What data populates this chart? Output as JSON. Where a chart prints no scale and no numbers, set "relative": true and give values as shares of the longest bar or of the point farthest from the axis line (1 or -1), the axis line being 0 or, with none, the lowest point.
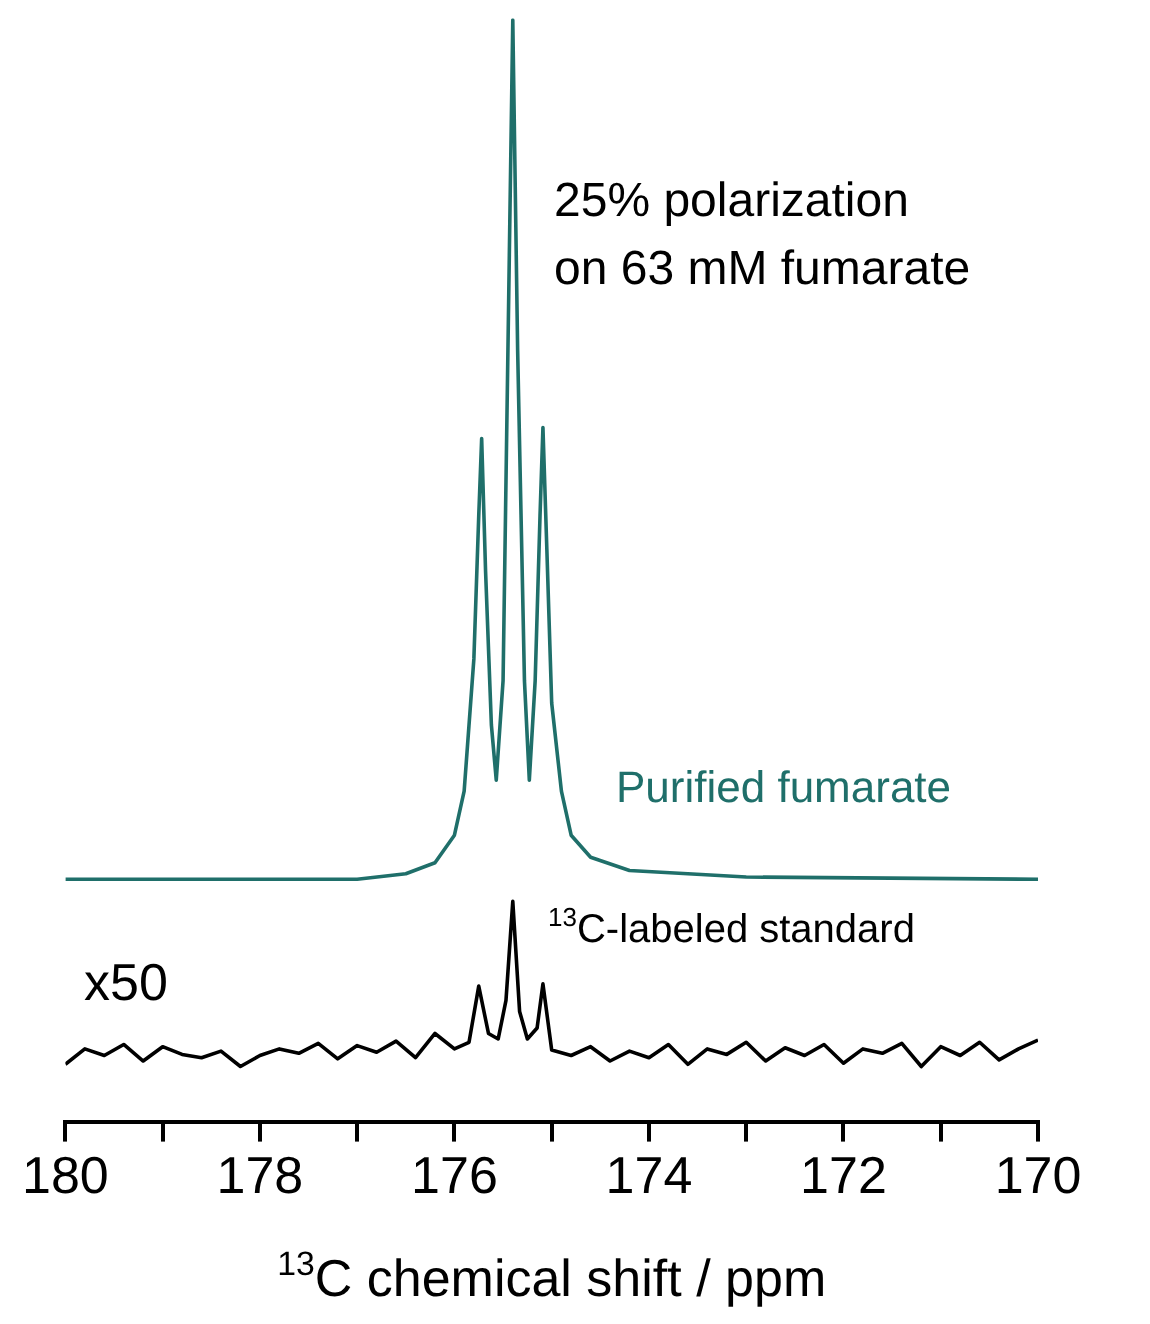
{
  "chart_data": {
    "type": "line",
    "relative": true,
    "xlabel": "$^{13}$C chemical shift / ppm",
    "annotations": [
      "25% polarization\non 63 mM fumarate",
      "x50"
    ],
    "xlim": [
      180,
      170
    ],
    "xticks": [
      180,
      {
        "value": 179,
        "label": null
      },
      178,
      {
        "value": 177,
        "label": null
      },
      176,
      {
        "value": 175,
        "label": null
      },
      174,
      {
        "value": 173,
        "label": null
      },
      172,
      {
        "value": 171,
        "label": null
      },
      170
    ],
    "grid": false,
    "legend": false,
    "marker": "none",
    "line_style": "solid",
    "tick_labels": "x",
    "series": [
      {
        "name": "Purified fumarate",
        "color": "#1f6f6a",
        "x": [
          180,
          177,
          176.5,
          176.2,
          176.0,
          175.9,
          175.8,
          175.75,
          175.72,
          175.68,
          175.62,
          175.57,
          175.5,
          175.45,
          175.4,
          175.35,
          175.28,
          175.23,
          175.17,
          175.12,
          175.09,
          175.05,
          175.0,
          174.9,
          174.8,
          174.6,
          174.2,
          173,
          170
        ],
        "values": [
          0.22,
          0.22,
          0.225,
          0.235,
          0.26,
          0.3,
          0.42,
          0.55,
          0.62,
          0.5,
          0.36,
          0.31,
          0.4,
          0.7,
          1.0,
          0.7,
          0.4,
          0.31,
          0.4,
          0.55,
          0.63,
          0.52,
          0.38,
          0.3,
          0.26,
          0.24,
          0.228,
          0.222,
          0.22
        ]
      },
      {
        "name": "$^{13}$C-labeled standard",
        "color": "#000000",
        "x": [
          180.0,
          179.8,
          179.6,
          179.4,
          179.2,
          179.0,
          178.8,
          178.6,
          178.4,
          178.2,
          178.0,
          177.8,
          177.6,
          177.4,
          177.2,
          177.0,
          176.8,
          176.6,
          176.4,
          176.2,
          176.0,
          175.85,
          175.75,
          175.65,
          175.55,
          175.47,
          175.4,
          175.33,
          175.25,
          175.15,
          175.09,
          175.0,
          174.8,
          174.6,
          174.4,
          174.2,
          174.0,
          173.8,
          173.6,
          173.4,
          173.2,
          173.0,
          172.8,
          172.6,
          172.4,
          172.2,
          172.0,
          171.8,
          171.6,
          171.4,
          171.2,
          171.0,
          170.8,
          170.6,
          170.4,
          170.2,
          170.0
        ],
        "values": [
          0.052,
          0.066,
          0.06,
          0.07,
          0.055,
          0.068,
          0.061,
          0.058,
          0.064,
          0.05,
          0.06,
          0.066,
          0.062,
          0.071,
          0.057,
          0.069,
          0.063,
          0.073,
          0.058,
          0.08,
          0.066,
          0.072,
          0.123,
          0.08,
          0.075,
          0.11,
          0.2,
          0.1,
          0.075,
          0.085,
          0.125,
          0.065,
          0.06,
          0.068,
          0.055,
          0.064,
          0.058,
          0.07,
          0.052,
          0.066,
          0.061,
          0.072,
          0.055,
          0.067,
          0.06,
          0.07,
          0.053,
          0.066,
          0.062,
          0.071,
          0.05,
          0.068,
          0.06,
          0.072,
          0.056,
          0.066,
          0.074
        ]
      }
    ]
  }
}
